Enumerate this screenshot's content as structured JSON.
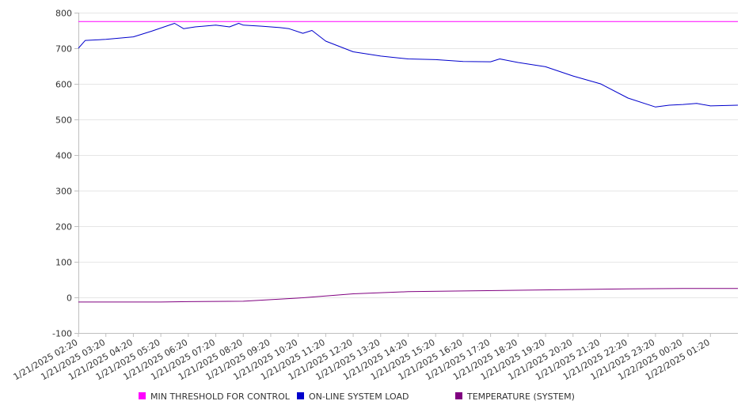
{
  "chart_data": {
    "type": "line",
    "title": "",
    "xlabel": "",
    "ylabel": "",
    "ylim": [
      -100,
      800
    ],
    "yticks": [
      -100,
      0,
      100,
      200,
      300,
      400,
      500,
      600,
      700,
      800
    ],
    "grid": true,
    "legend_position": "bottom",
    "x_range": [
      "1/21/2025 02:20",
      "1/22/2025 02:20"
    ],
    "x_tick_labels": [
      "1/21/2025 02:20",
      "1/21/2025 03:20",
      "1/21/2025 04:20",
      "1/21/2025 05:20",
      "1/21/2025 06:20",
      "1/21/2025 07:20",
      "1/21/2025 08:20",
      "1/21/2025 09:20",
      "1/21/2025 10:20",
      "1/21/2025 11:20",
      "1/21/2025 12:20",
      "1/21/2025 13:20",
      "1/21/2025 14:20",
      "1/21/2025 15:20",
      "1/21/2025 16:20",
      "1/21/2025 17:20",
      "1/21/2025 18:20",
      "1/21/2025 19:20",
      "1/21/2025 20:20",
      "1/21/2025 21:20",
      "1/21/2025 22:20",
      "1/21/2025 23:20",
      "1/22/2025 00:20",
      "1/22/2025 01:20"
    ],
    "series": [
      {
        "name": "MIN THRESHOLD FOR CONTROL",
        "color": "#ff00ff",
        "x": [
          "1/21/2025 02:20",
          "1/22/2025 02:20"
        ],
        "values": [
          775,
          775
        ]
      },
      {
        "name": "ON-LINE SYSTEM LOAD",
        "color": "#0000cc",
        "x": [
          "1/21/2025 02:20",
          "1/21/2025 02:35",
          "1/21/2025 03:20",
          "1/21/2025 04:20",
          "1/21/2025 05:00",
          "1/21/2025 05:50",
          "1/21/2025 06:10",
          "1/21/2025 06:35",
          "1/21/2025 07:20",
          "1/21/2025 07:50",
          "1/21/2025 08:10",
          "1/21/2025 08:20",
          "1/21/2025 09:00",
          "1/21/2025 09:40",
          "1/21/2025 10:00",
          "1/21/2025 10:30",
          "1/21/2025 10:50",
          "1/21/2025 11:20",
          "1/21/2025 12:20",
          "1/21/2025 13:20",
          "1/21/2025 14:20",
          "1/21/2025 15:20",
          "1/21/2025 16:20",
          "1/21/2025 17:20",
          "1/21/2025 17:40",
          "1/21/2025 18:20",
          "1/21/2025 19:20",
          "1/21/2025 20:20",
          "1/21/2025 21:20",
          "1/21/2025 22:20",
          "1/21/2025 23:20",
          "1/21/2025 23:50",
          "1/22/2025 00:20",
          "1/22/2025 00:50",
          "1/22/2025 01:20",
          "1/22/2025 02:20"
        ],
        "values": [
          700,
          722,
          725,
          732,
          748,
          770,
          755,
          760,
          765,
          760,
          770,
          765,
          762,
          758,
          755,
          742,
          750,
          720,
          690,
          678,
          670,
          668,
          663,
          662,
          670,
          660,
          648,
          622,
          600,
          560,
          535,
          540,
          542,
          545,
          538,
          540
        ]
      },
      {
        "name": "TEMPERATURE (SYSTEM)",
        "color": "#800080",
        "x": [
          "1/21/2025 02:20",
          "1/21/2025 05:20",
          "1/21/2025 06:20",
          "1/21/2025 08:20",
          "1/21/2025 10:20",
          "1/21/2025 12:20",
          "1/21/2025 14:20",
          "1/21/2025 16:20",
          "1/21/2025 18:20",
          "1/21/2025 20:20",
          "1/21/2025 22:20",
          "1/22/2025 00:20",
          "1/22/2025 02:20"
        ],
        "values": [
          -13,
          -13,
          -12,
          -11,
          -2,
          10,
          16,
          18,
          20,
          22,
          24,
          25,
          25
        ]
      }
    ]
  }
}
